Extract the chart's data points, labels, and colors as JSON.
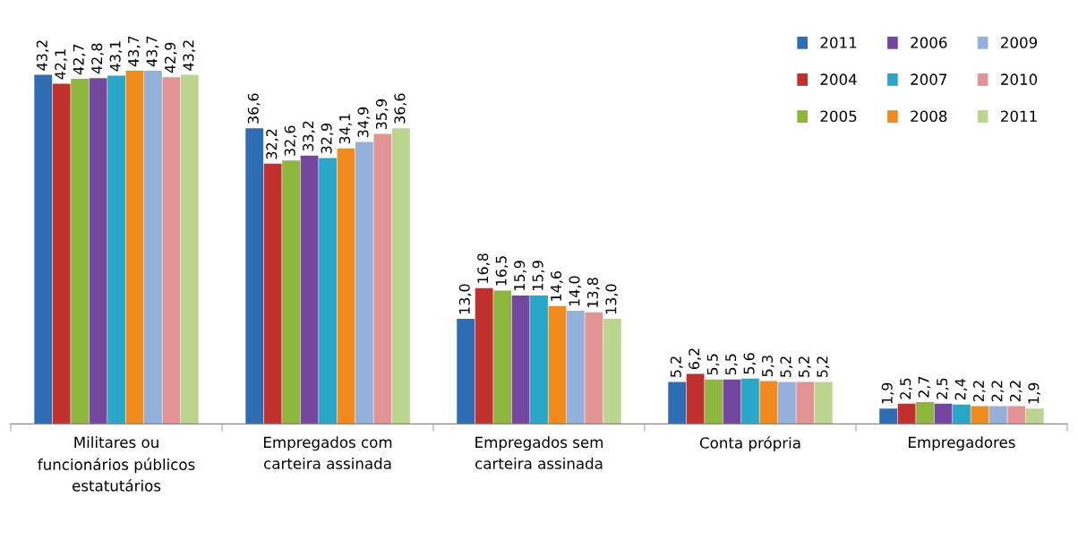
{
  "chart_data": {
    "type": "bar",
    "categories": [
      "Militares ou\nfuncionários públicos\nestatutários",
      "Empregados com\ncarteira assinada",
      "Empregados sem\ncarteira assinada",
      "Conta própria",
      "Empregadores"
    ],
    "series": [
      {
        "name": "2011",
        "color": "#2e6db4",
        "values": [
          43.2,
          36.6,
          13.0,
          5.2,
          1.9
        ],
        "value_labels": [
          "43,2",
          "36,6",
          "13,0",
          "5,2",
          "1,9"
        ]
      },
      {
        "name": "2004",
        "color": "#c0302c",
        "values": [
          42.1,
          32.2,
          16.8,
          6.2,
          2.5
        ],
        "value_labels": [
          "42,1",
          "32,2",
          "16,8",
          "6,2",
          "2,5"
        ]
      },
      {
        "name": "2005",
        "color": "#8db63c",
        "values": [
          42.7,
          32.6,
          16.5,
          5.5,
          2.7
        ],
        "value_labels": [
          "42,7",
          "32,6",
          "16,5",
          "5,5",
          "2,7"
        ]
      },
      {
        "name": "2006",
        "color": "#7347a0",
        "values": [
          42.8,
          33.2,
          15.9,
          5.5,
          2.5
        ],
        "value_labels": [
          "42,8",
          "33,2",
          "15,9",
          "5,5",
          "2,5"
        ]
      },
      {
        "name": "2007",
        "color": "#2aa7c8",
        "values": [
          43.1,
          32.9,
          15.9,
          5.6,
          2.4
        ],
        "value_labels": [
          "43,1",
          "32,9",
          "15,9",
          "5,6",
          "2,4"
        ]
      },
      {
        "name": "2008",
        "color": "#f08a1c",
        "values": [
          43.7,
          34.1,
          14.6,
          5.3,
          2.2
        ],
        "value_labels": [
          "43,7",
          "34,1",
          "14,6",
          "5,3",
          "2,2"
        ]
      },
      {
        "name": "2009",
        "color": "#93b1db",
        "values": [
          43.7,
          34.9,
          14.0,
          5.2,
          2.2
        ],
        "value_labels": [
          "43,7",
          "34,9",
          "14,0",
          "5,2",
          "2,2"
        ]
      },
      {
        "name": "2010",
        "color": "#e29494",
        "values": [
          42.9,
          35.9,
          13.8,
          5.2,
          2.2
        ],
        "value_labels": [
          "42,9",
          "35,9",
          "13,8",
          "5,2",
          "2,2"
        ]
      },
      {
        "name": "2011",
        "color": "#bcd58e",
        "values": [
          43.2,
          36.6,
          13.0,
          5.2,
          1.9
        ],
        "value_labels": [
          "43,2",
          "36,6",
          "13,0",
          "5,2",
          "1,9"
        ]
      }
    ],
    "legend": "top right",
    "grid": false
  }
}
